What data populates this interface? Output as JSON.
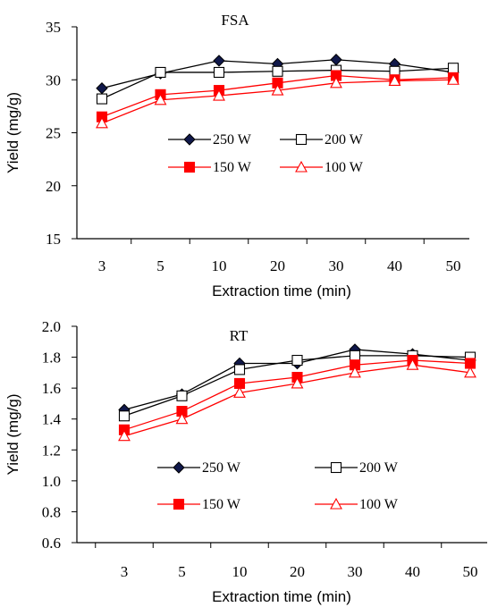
{
  "chart_data": [
    {
      "type": "line",
      "title": "FSA",
      "xlabel": "Extraction time (min)",
      "ylabel": "Yield (mg/g)",
      "categories": [
        "3",
        "5",
        "10",
        "20",
        "30",
        "40",
        "50"
      ],
      "ylim": [
        15,
        35
      ],
      "yticks": [
        "15",
        "20",
        "25",
        "30",
        "35"
      ],
      "grid": false,
      "legend_position": "center",
      "series": [
        {
          "name": "250 W",
          "marker": "diamond",
          "fill": "#10184a",
          "stroke": "#000000",
          "values": [
            29.2,
            30.6,
            31.8,
            31.5,
            31.9,
            31.5,
            30.7
          ]
        },
        {
          "name": "200 W",
          "marker": "square-open",
          "fill": "#ffffff",
          "stroke": "#000000",
          "values": [
            28.2,
            30.7,
            30.7,
            30.8,
            30.9,
            30.8,
            31.1
          ]
        },
        {
          "name": "150 W",
          "marker": "square",
          "fill": "#ff0000",
          "stroke": "#ff0000",
          "values": [
            26.5,
            28.6,
            29.0,
            29.7,
            30.4,
            30.0,
            30.2
          ]
        },
        {
          "name": "100 W",
          "marker": "triangle-open",
          "fill": "#ffffff",
          "stroke": "#ff0000",
          "values": [
            25.9,
            28.1,
            28.5,
            29.0,
            29.7,
            29.9,
            30.0
          ]
        }
      ]
    },
    {
      "type": "line",
      "title": "RT",
      "xlabel": "Extraction time (min)",
      "ylabel": "Yield (mg/g)",
      "categories": [
        "3",
        "5",
        "10",
        "20",
        "30",
        "40",
        "50"
      ],
      "ylim": [
        0.6,
        2.0
      ],
      "yticks": [
        "0.6",
        "0.8",
        "1.0",
        "1.2",
        "1.4",
        "1.6",
        "1.8",
        "2.0"
      ],
      "grid": false,
      "legend_position": "center-bottom",
      "series": [
        {
          "name": "250 W",
          "marker": "diamond",
          "fill": "#10184a",
          "stroke": "#000000",
          "values": [
            1.46,
            1.56,
            1.76,
            1.76,
            1.85,
            1.82,
            1.78
          ]
        },
        {
          "name": "200 W",
          "marker": "square-open",
          "fill": "#ffffff",
          "stroke": "#000000",
          "values": [
            1.42,
            1.55,
            1.72,
            1.78,
            1.81,
            1.81,
            1.8
          ]
        },
        {
          "name": "150 W",
          "marker": "square",
          "fill": "#ff0000",
          "stroke": "#ff0000",
          "values": [
            1.33,
            1.45,
            1.63,
            1.67,
            1.75,
            1.78,
            1.76
          ]
        },
        {
          "name": "100 W",
          "marker": "triangle-open",
          "fill": "#ffffff",
          "stroke": "#ff0000",
          "values": [
            1.29,
            1.4,
            1.57,
            1.63,
            1.7,
            1.75,
            1.7
          ]
        }
      ]
    }
  ]
}
